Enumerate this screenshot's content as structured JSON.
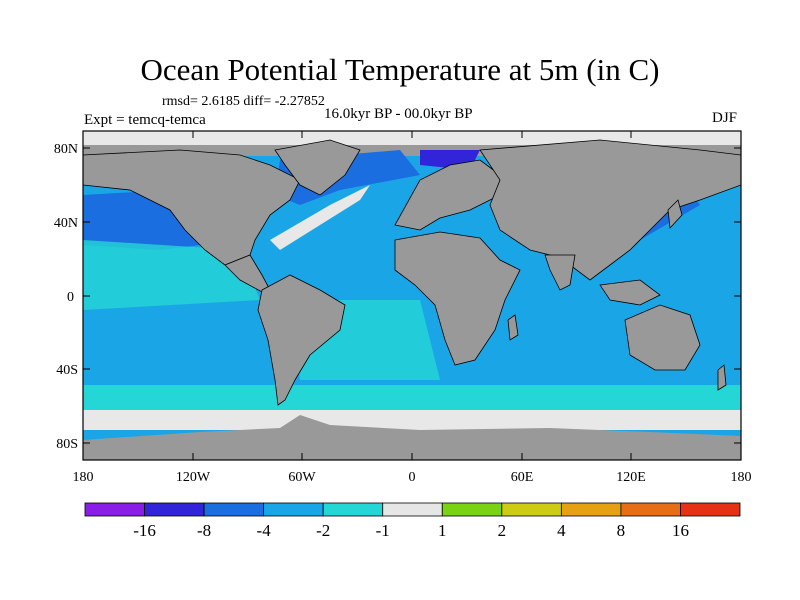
{
  "title": "Ocean Potential Temperature at 5m (in C)",
  "stats": "rmsd= 2.6185 diff= -2.27852",
  "left_label": "Expt = temcq-temca",
  "center_label": "16.0kyr BP - 00.0kyr BP",
  "right_label": "DJF",
  "axes": {
    "lat_ticks": [
      "80N",
      "40N",
      "0",
      "40S",
      "80S"
    ],
    "lon_ticks": [
      "180",
      "120W",
      "60W",
      "0",
      "60E",
      "120E",
      "180"
    ]
  },
  "colorbar": {
    "labels": [
      "-16",
      "-8",
      "-4",
      "-2",
      "-1",
      "1",
      "2",
      "4",
      "8",
      "16"
    ],
    "colors": [
      "#8a1ee6",
      "#3224d8",
      "#1a6ee0",
      "#1aa6e6",
      "#24d6d6",
      "#e6e6e6",
      "#7ad214",
      "#cccc14",
      "#e6a014",
      "#e66e14",
      "#e63214"
    ]
  },
  "colors": {
    "land": "#999999",
    "ocean_main": "#1aa6e6",
    "ocean_cool": "#24d6d6",
    "ice_white": "#e8e8e8",
    "deep_blue": "#1a6ee0"
  }
}
